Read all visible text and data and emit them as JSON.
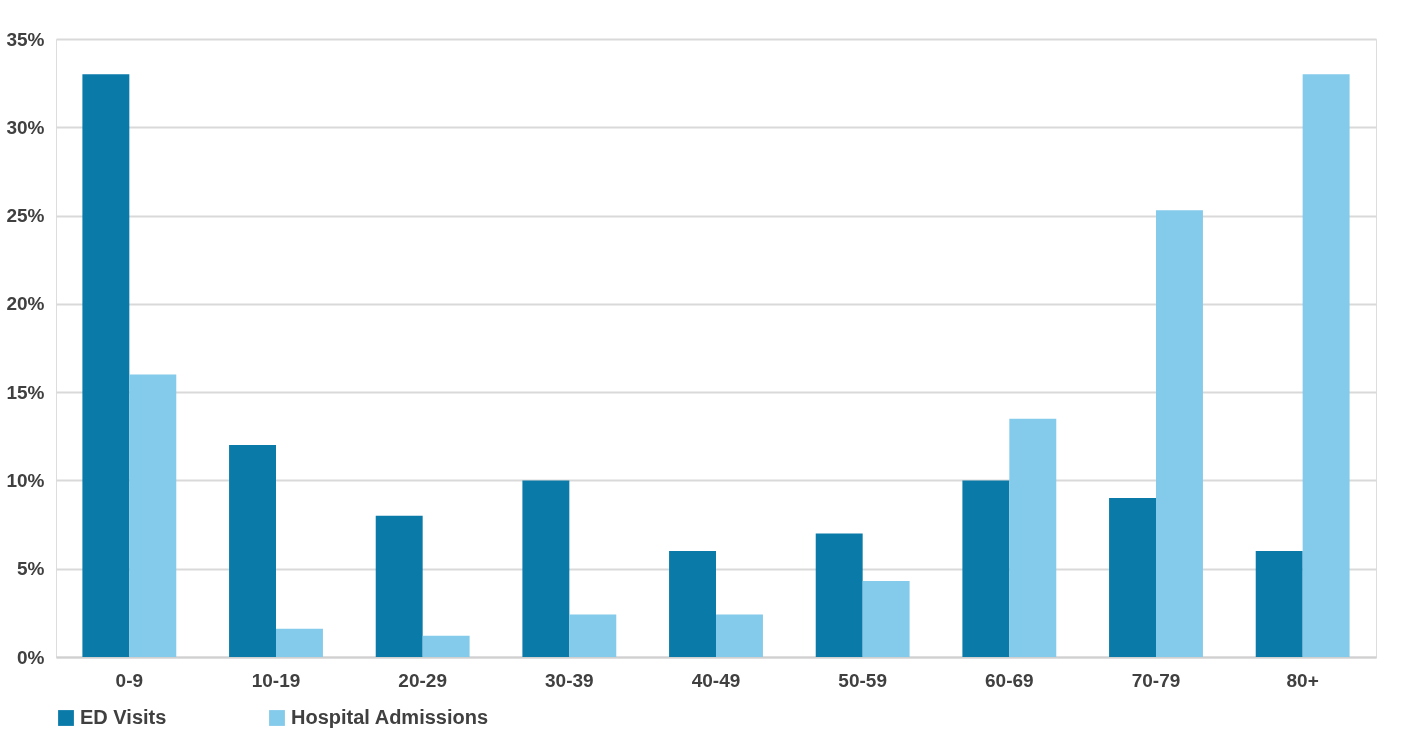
{
  "chart_data": {
    "type": "bar",
    "categories": [
      "0-9",
      "10-19",
      "20-29",
      "30-39",
      "40-49",
      "50-59",
      "60-69",
      "70-79",
      "80+"
    ],
    "series": [
      {
        "name": "ED Visits",
        "color": "#0a7aa8",
        "values": [
          33,
          12,
          8,
          10,
          6,
          7,
          10,
          9,
          6
        ]
      },
      {
        "name": "Hospital Admissions",
        "color": "#84caea",
        "values": [
          16,
          1.6,
          1.2,
          2.4,
          2.4,
          4.3,
          13.5,
          25.3,
          33
        ]
      }
    ],
    "ylim": [
      0,
      35
    ],
    "yticks": [
      {
        "value": 0,
        "label": "0%"
      },
      {
        "value": 5,
        "label": "5%"
      },
      {
        "value": 10,
        "label": "10%"
      },
      {
        "value": 15,
        "label": "15%"
      },
      {
        "value": 20,
        "label": "20%"
      },
      {
        "value": 25,
        "label": "25%"
      },
      {
        "value": 30,
        "label": "30%"
      },
      {
        "value": 35,
        "label": "35%"
      }
    ],
    "grid": "y",
    "legend": "bottom"
  }
}
